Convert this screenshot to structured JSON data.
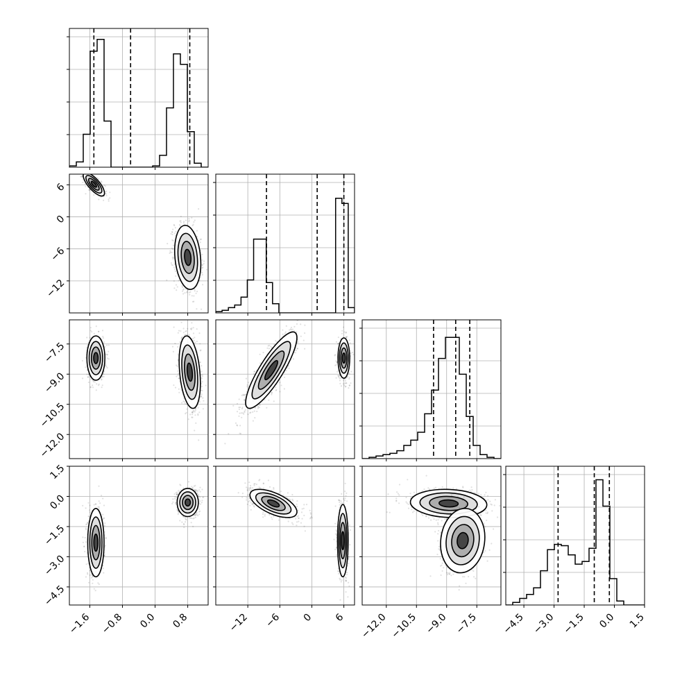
{
  "chart_data": {
    "type": "corner",
    "description_free": true,
    "grid": true,
    "parameters": [
      {
        "range": [
          -2.1,
          1.3
        ],
        "ticks": [
          -1.6,
          -0.8,
          0.0,
          0.8
        ],
        "tick_labels": [
          "−1.6",
          "−0.8",
          "0.0",
          "0.8"
        ]
      },
      {
        "range": [
          -18,
          8
        ],
        "ticks": [
          -12,
          -6,
          0,
          6
        ],
        "tick_labels": [
          "−12",
          "−6",
          "0",
          "6"
        ]
      },
      {
        "range": [
          -13.2,
          -6.3
        ],
        "ticks": [
          -12.0,
          -10.5,
          -9.0,
          -7.5
        ],
        "tick_labels": [
          "−12.0",
          "−10.5",
          "−9.0",
          "−7.5"
        ]
      },
      {
        "range": [
          -5.4,
          1.5
        ],
        "ticks": [
          -4.5,
          -3.0,
          -1.5,
          0.0,
          1.5
        ],
        "tick_labels": [
          "−4.5",
          "−3.0",
          "−1.5",
          "0.0",
          "1.5"
        ]
      }
    ],
    "histograms": [
      {
        "param": 0,
        "edges_range": [
          -2.1,
          1.3
        ],
        "counts": [
          0.01,
          0.04,
          0.25,
          0.88,
          0.97,
          0.35,
          0.0,
          0.0,
          0.0,
          0.0,
          0.0,
          0.0,
          0.01,
          0.09,
          0.45,
          0.86,
          0.78,
          0.27,
          0.03,
          0.0
        ],
        "quantiles": [
          -1.5,
          -0.6,
          0.85
        ]
      },
      {
        "param": 1,
        "edges_range": [
          -18,
          8
        ],
        "counts": [
          0.01,
          0.02,
          0.04,
          0.06,
          0.12,
          0.25,
          0.56,
          0.56,
          0.23,
          0.07,
          0.0,
          0.0,
          0.0,
          0.0,
          0.0,
          0.0,
          0.0,
          0.0,
          0.0,
          0.87,
          0.83,
          0.04
        ],
        "quantiles": [
          -8.5,
          1.0,
          6.0
        ]
      },
      {
        "param": 2,
        "edges_range": [
          -13.2,
          -6.3
        ],
        "counts": [
          0.0,
          0.01,
          0.02,
          0.03,
          0.04,
          0.06,
          0.1,
          0.14,
          0.2,
          0.34,
          0.52,
          0.76,
          0.92,
          0.92,
          0.64,
          0.32,
          0.1,
          0.03,
          0.01,
          0.0
        ],
        "quantiles": [
          -9.65,
          -8.55,
          -7.85
        ]
      },
      {
        "param": 3,
        "edges_range": [
          -5.4,
          1.5
        ],
        "counts": [
          0.0,
          0.02,
          0.05,
          0.08,
          0.13,
          0.26,
          0.42,
          0.46,
          0.45,
          0.38,
          0.31,
          0.33,
          0.43,
          0.95,
          0.75,
          0.2,
          0.03,
          0.0,
          0.0,
          0.0
        ],
        "quantiles": [
          -2.8,
          -1.0,
          -0.25
        ]
      }
    ],
    "scatter_panels": [
      {
        "x_param": 0,
        "y_param": 1,
        "modes": [
          {
            "center": [
              -1.5,
              6.1
            ],
            "sd": [
              0.13,
              1.1
            ],
            "corr": -0.75,
            "weight": 0.4
          },
          {
            "center": [
              0.8,
              -7.6
            ],
            "sd": [
              0.16,
              3.0
            ],
            "corr": -0.2,
            "weight": 0.6
          }
        ]
      },
      {
        "x_param": 0,
        "y_param": 2,
        "modes": [
          {
            "center": [
              -1.45,
              -8.2
            ],
            "sd": [
              0.11,
              0.55
            ],
            "corr": 0.0,
            "weight": 0.4
          },
          {
            "center": [
              0.85,
              -8.9
            ],
            "sd": [
              0.13,
              0.9
            ],
            "corr": -0.3,
            "weight": 0.6
          }
        ]
      },
      {
        "x_param": 1,
        "y_param": 2,
        "modes": [
          {
            "center": [
              -7.6,
              -8.8
            ],
            "sd": [
              2.4,
              0.95
            ],
            "corr": 0.85,
            "weight": 0.6
          },
          {
            "center": [
              6.0,
              -8.2
            ],
            "sd": [
              0.55,
              0.5
            ],
            "corr": 0.0,
            "weight": 0.4
          }
        ]
      },
      {
        "x_param": 0,
        "y_param": 3,
        "modes": [
          {
            "center": [
              -1.45,
              -2.3
            ],
            "sd": [
              0.1,
              0.85
            ],
            "corr": 0.0,
            "weight": 0.4
          },
          {
            "center": [
              0.8,
              -0.3
            ],
            "sd": [
              0.13,
              0.35
            ],
            "corr": 0.0,
            "weight": 0.6
          }
        ]
      },
      {
        "x_param": 1,
        "y_param": 3,
        "modes": [
          {
            "center": [
              -7.2,
              -0.35
            ],
            "sd": [
              2.2,
              0.35
            ],
            "corr": -0.6,
            "weight": 0.6
          },
          {
            "center": [
              5.8,
              -2.2
            ],
            "sd": [
              0.5,
              0.9
            ],
            "corr": 0.0,
            "weight": 0.4
          }
        ]
      },
      {
        "x_param": 2,
        "y_param": 3,
        "modes": [
          {
            "center": [
              -8.9,
              -0.35
            ],
            "sd": [
              0.95,
              0.35
            ],
            "corr": -0.1,
            "weight": 0.6
          },
          {
            "center": [
              -8.2,
              -2.2
            ],
            "sd": [
              0.55,
              0.8
            ],
            "corr": 0.1,
            "weight": 0.4
          }
        ]
      }
    ]
  }
}
